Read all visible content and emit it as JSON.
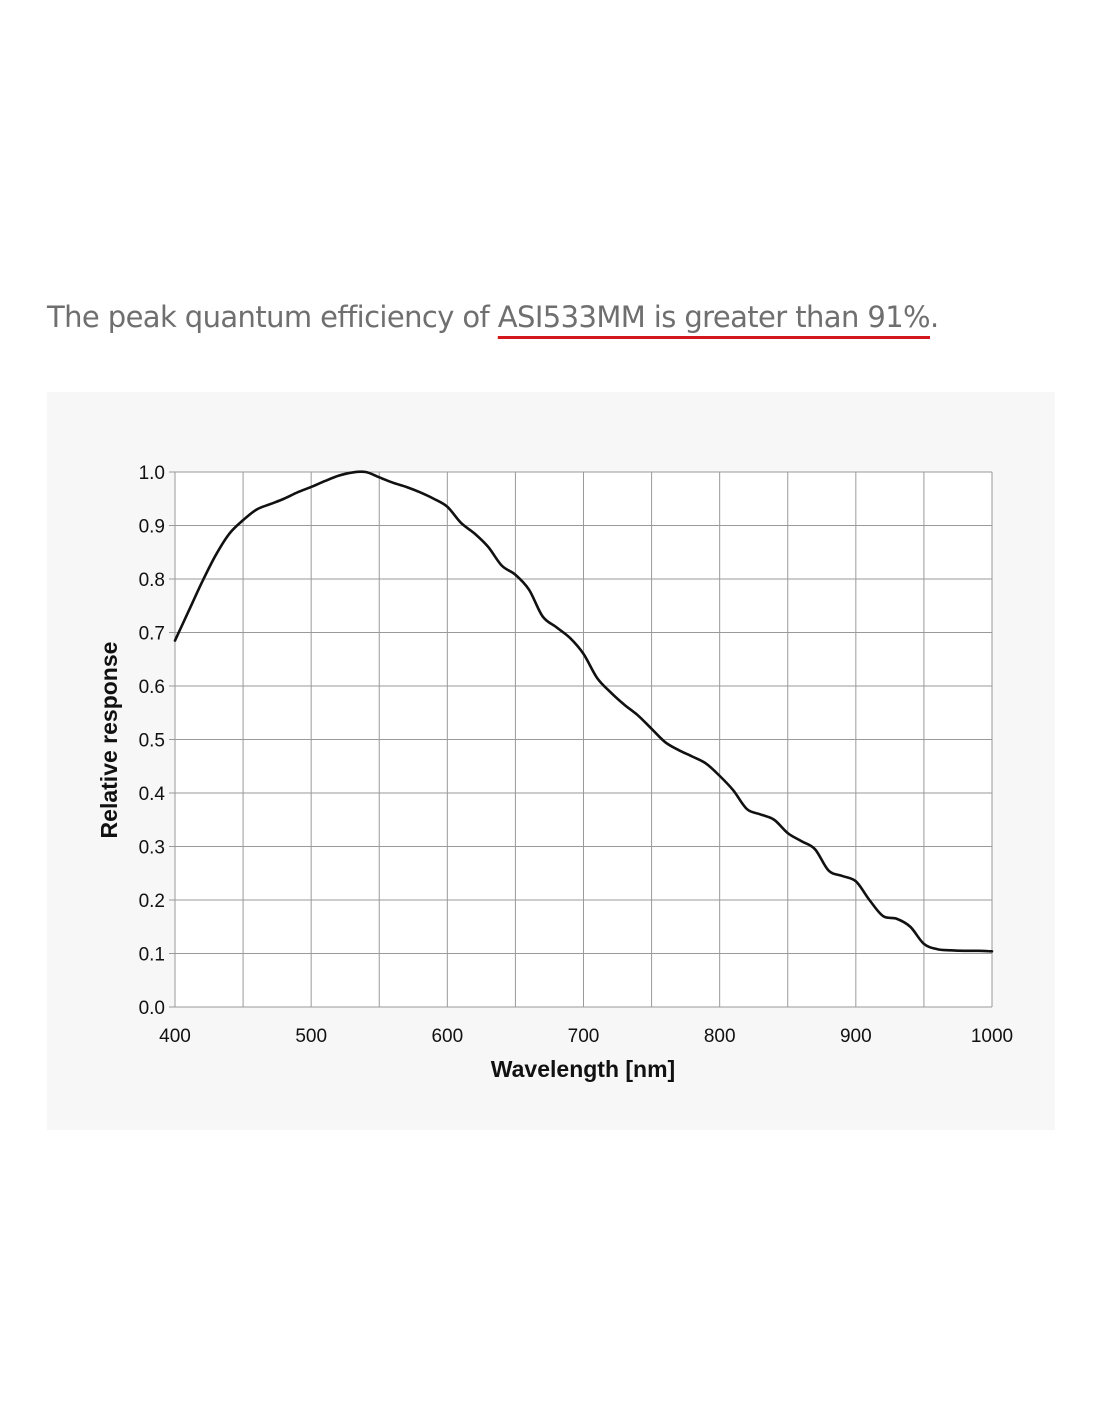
{
  "headline": {
    "prefix": "The peak quantum efficiency of ",
    "highlight": "ASI533MM is greater than 91%",
    "suffix": "."
  },
  "colors": {
    "headline_text": "#6f6f6f",
    "underline": "#d4161d",
    "panel_background": "#f7f7f7",
    "grid": "#9a9a9a",
    "curve": "#111111"
  },
  "chart_data": {
    "type": "line",
    "title": "",
    "xlabel": "Wavelength [nm]",
    "ylabel": "Relative response",
    "xlim": [
      400,
      1000
    ],
    "ylim": [
      0,
      1.0
    ],
    "x_ticks": [
      400,
      500,
      600,
      700,
      800,
      900,
      1000
    ],
    "x_tick_labels": [
      "400",
      "500",
      "600",
      "700",
      "800",
      "900",
      "1000"
    ],
    "y_ticks": [
      0,
      0.1,
      0.2,
      0.3,
      0.4,
      0.5,
      0.6,
      0.7,
      0.8,
      0.9,
      1.0
    ],
    "y_tick_labels": [
      "0.0",
      "0.1",
      "0.2",
      "0.3",
      "0.4",
      "0.5",
      "0.6",
      "0.7",
      "0.8",
      "0.9",
      "1.0"
    ],
    "grid": true,
    "vertical_gridlines_every": 50,
    "series": [
      {
        "x": [
          400,
          410,
          420,
          430,
          440,
          450,
          460,
          470,
          480,
          490,
          500,
          510,
          520,
          530,
          540,
          550,
          560,
          570,
          580,
          590,
          600,
          610,
          620,
          630,
          640,
          650,
          660,
          670,
          680,
          690,
          700,
          710,
          720,
          730,
          740,
          750,
          760,
          770,
          780,
          790,
          800,
          810,
          820,
          830,
          840,
          850,
          860,
          870,
          880,
          890,
          900,
          910,
          920,
          930,
          940,
          950,
          960,
          970,
          980,
          990,
          1000
        ],
        "values": [
          0.685,
          0.74,
          0.795,
          0.845,
          0.885,
          0.91,
          0.93,
          0.94,
          0.95,
          0.962,
          0.972,
          0.983,
          0.993,
          0.999,
          1.0,
          0.99,
          0.98,
          0.972,
          0.962,
          0.95,
          0.935,
          0.905,
          0.885,
          0.86,
          0.825,
          0.808,
          0.78,
          0.73,
          0.71,
          0.69,
          0.66,
          0.615,
          0.588,
          0.565,
          0.545,
          0.52,
          0.495,
          0.48,
          0.468,
          0.455,
          0.432,
          0.405,
          0.37,
          0.36,
          0.35,
          0.325,
          0.31,
          0.295,
          0.255,
          0.245,
          0.235,
          0.2,
          0.17,
          0.165,
          0.15,
          0.118,
          0.108,
          0.106,
          0.105,
          0.105,
          0.104
        ]
      }
    ]
  }
}
